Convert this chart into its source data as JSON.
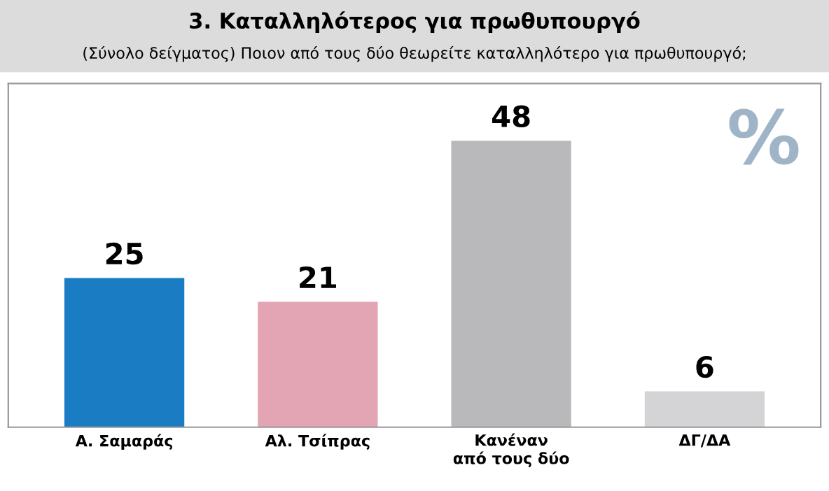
{
  "chart_data": {
    "type": "bar",
    "title": "3. Καταλληλότερος για πρωθυπουργό",
    "subtitle": "(Σύνολο δείγματος) Ποιον από τους δύο θεωρείτε καταλληλότερο για πρωθυπουργό;",
    "categories": [
      "Α. Σαμαράς",
      "Αλ. Τσίπρας",
      "Κανέναν\nαπό τους δύο",
      "ΔΓ/ΔΑ"
    ],
    "values": [
      25,
      21,
      48,
      6
    ],
    "colors": [
      "#1a7dc4",
      "#e3a5b4",
      "#b9b9bb",
      "#d4d4d6"
    ],
    "data_labels": true,
    "annotations": [
      "%"
    ]
  }
}
